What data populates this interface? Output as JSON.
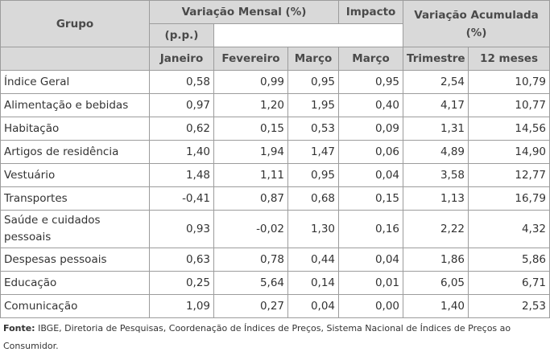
{
  "header": {
    "grupo": "Grupo",
    "mensal": "Variação Mensal (%)",
    "impacto_top": "Impacto",
    "impacto_sub": "(p.p.)",
    "acumulada": "Variação Acumulada (%)",
    "sub": [
      "Janeiro",
      "Fevereiro",
      "Março",
      "Março",
      "Trimestre",
      "12 meses"
    ]
  },
  "rows": [
    {
      "grupo": "Índice Geral",
      "values": [
        "0,58",
        "0,99",
        "0,95",
        "0,95",
        "2,54",
        "10,79"
      ]
    },
    {
      "grupo": "Alimentação e bebidas",
      "values": [
        "0,97",
        "1,20",
        "1,95",
        "0,40",
        "4,17",
        "10,77"
      ]
    },
    {
      "grupo": "Habitação",
      "values": [
        "0,62",
        "0,15",
        "0,53",
        "0,09",
        "1,31",
        "14,56"
      ]
    },
    {
      "grupo": "Artigos de residência",
      "values": [
        "1,40",
        "1,94",
        "1,47",
        "0,06",
        "4,89",
        "14,90"
      ]
    },
    {
      "grupo": "Vestuário",
      "values": [
        "1,48",
        "1,11",
        "0,95",
        "0,04",
        "3,58",
        "12,77"
      ]
    },
    {
      "grupo": "Transportes",
      "values": [
        "-0,41",
        "0,87",
        "0,68",
        "0,15",
        "1,13",
        "16,79"
      ]
    },
    {
      "grupo": "Saúde e cuidados pessoais",
      "values": [
        "0,93",
        "-0,02",
        "1,30",
        "0,16",
        "2,22",
        "4,32"
      ]
    },
    {
      "grupo": "Despesas pessoais",
      "values": [
        "0,63",
        "0,78",
        "0,44",
        "0,04",
        "1,86",
        "5,86"
      ]
    },
    {
      "grupo": "Educação",
      "values": [
        "0,25",
        "5,64",
        "0,14",
        "0,01",
        "6,05",
        "6,71"
      ]
    },
    {
      "grupo": "Comunicação",
      "values": [
        "1,09",
        "0,27",
        "0,04",
        "0,00",
        "1,40",
        "2,53"
      ]
    }
  ],
  "footer": {
    "label": "Fonte:",
    "text": " IBGE, Diretoria de Pesquisas, Coordenação de Índices de Preços, Sistema Nacional de Índices de Preços ao Consumidor."
  }
}
